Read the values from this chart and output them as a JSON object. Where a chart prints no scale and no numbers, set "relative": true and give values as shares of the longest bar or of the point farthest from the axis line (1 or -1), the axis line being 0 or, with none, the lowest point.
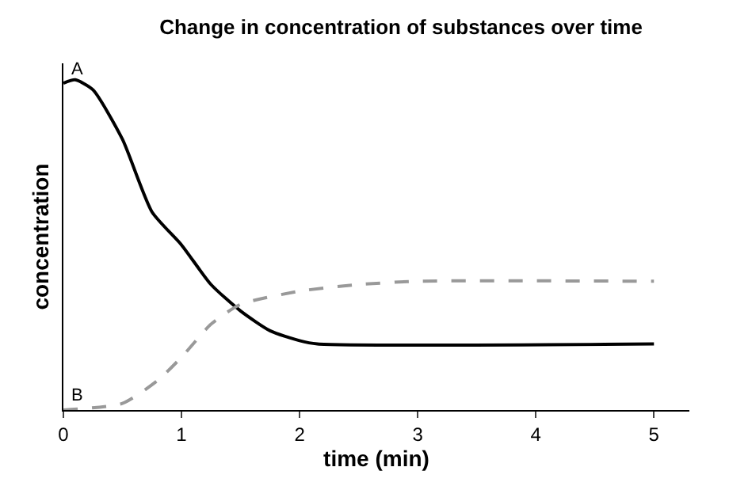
{
  "chart_data": {
    "type": "line",
    "title": "Change in concentration of substances over time",
    "xlabel": "time (min)",
    "ylabel": "concentration",
    "relative": true,
    "tick_labels": "x",
    "legend": false,
    "marker": "none",
    "xlim": [
      0,
      5.3
    ],
    "xticks": [
      0,
      1,
      2,
      3,
      4,
      5
    ],
    "series": [
      {
        "name": "A",
        "color": "#000000",
        "line_style": "solid",
        "x": [
          0,
          0.1,
          0.25,
          0.5,
          0.75,
          1.0,
          1.25,
          1.5,
          1.75,
          2.0,
          2.15,
          5
        ],
        "values": [
          0.99,
          1,
          0.97,
          0.82,
          0.6,
          0.5,
          0.38,
          0.3,
          0.24,
          0.21,
          0.2,
          0.2
        ]
      },
      {
        "name": "B",
        "color": "#999999",
        "line_style": "dashed",
        "x": [
          0,
          0.5,
          0.8,
          1.0,
          1.25,
          1.5,
          2.0,
          2.5,
          3.0,
          5
        ],
        "values": [
          0,
          0.02,
          0.09,
          0.16,
          0.26,
          0.32,
          0.36,
          0.38,
          0.39,
          0.39
        ]
      }
    ]
  }
}
